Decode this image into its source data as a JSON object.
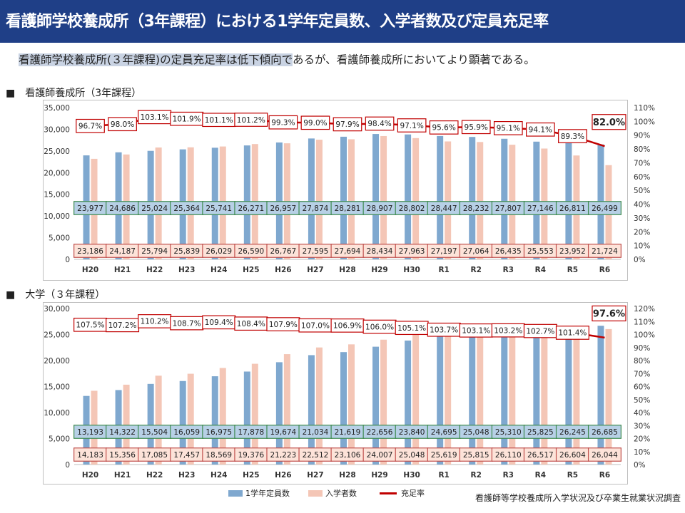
{
  "header": {
    "title": "看護師学校養成所（3年課程）における1学年定員数、入学者数及び定員充足率",
    "subtitle_highlight": "看護師学校養成所(３年課程)の定員充足率は低下傾向で",
    "subtitle_rest": "あるが、看護師養成所においてより顕著である。"
  },
  "colors": {
    "header_bg": "#1f3f87",
    "capacity": "#7fa8cf",
    "capacity_label_bg": "#b7d0e6",
    "capacity_label_border": "#3d8a4f",
    "enrollees": "#f4c6b6",
    "enrollees_label_bg": "#fde3d9",
    "enrollees_label_border": "#c0504d",
    "rate_line": "#c00000",
    "rate_label_border": "#c00000"
  },
  "legend": {
    "capacity": "1学年定員数",
    "enrollees": "入学者数",
    "rate": "充足率"
  },
  "source": "看護師等学校養成所入学状況及び卒業生就業状況調査",
  "chart_data": [
    {
      "type": "bar",
      "section_label": "■　看護師養成所（3年課程）",
      "categories": [
        "H20",
        "H21",
        "H22",
        "H23",
        "H24",
        "H25",
        "H26",
        "H27",
        "H28",
        "H29",
        "H30",
        "R1",
        "R2",
        "R3",
        "R4",
        "R5",
        "R6"
      ],
      "series": [
        {
          "name": "1学年定員数",
          "values": [
            23977,
            24686,
            25024,
            25364,
            25741,
            26271,
            26957,
            27874,
            28281,
            28907,
            28802,
            28447,
            28232,
            27807,
            27146,
            26811,
            26499
          ],
          "labels": [
            "23,977",
            "24,686",
            "25,024",
            "25,364",
            "25,741",
            "26,271",
            "26,957",
            "27,874",
            "28,281",
            "28,907",
            "28,802",
            "28,447",
            "28,232",
            "27,807",
            "27,146",
            "26,811",
            "26,499"
          ]
        },
        {
          "name": "入学者数",
          "values": [
            23186,
            24187,
            25794,
            25839,
            26029,
            26590,
            26767,
            27595,
            27694,
            28434,
            27963,
            27197,
            27064,
            26435,
            25553,
            23952,
            21724
          ],
          "labels": [
            "23,186",
            "24,187",
            "25,794",
            "25,839",
            "26,029",
            "26,590",
            "26,767",
            "27,595",
            "27,694",
            "28,434",
            "27,963",
            "27,197",
            "27,064",
            "26,435",
            "25,553",
            "23,952",
            "21,724"
          ]
        },
        {
          "name": "充足率",
          "type": "line",
          "axis": "right",
          "values": [
            96.7,
            98.0,
            103.1,
            101.9,
            101.1,
            101.2,
            99.3,
            99.0,
            97.9,
            98.4,
            97.1,
            95.6,
            95.9,
            95.1,
            94.1,
            89.3,
            82.0
          ],
          "labels": [
            "96.7%",
            "98.0%",
            "103.1%",
            "101.9%",
            "101.1%",
            "101.2%",
            "99.3%",
            "99.0%",
            "97.9%",
            "98.4%",
            "97.1%",
            "95.6%",
            "95.9%",
            "95.1%",
            "94.1%",
            "89.3%",
            "82.0%"
          ]
        }
      ],
      "ylim": [
        0,
        35000
      ],
      "yticks": [
        "0",
        "5,000",
        "10,000",
        "15,000",
        "20,000",
        "25,000",
        "30,000",
        "35,000"
      ],
      "y2lim": [
        0,
        110
      ],
      "y2ticks": [
        "0%",
        "10%",
        "20%",
        "30%",
        "40%",
        "50%",
        "60%",
        "70%",
        "80%",
        "90%",
        "100%",
        "110%"
      ]
    },
    {
      "type": "bar",
      "section_label": "■　大学（３年課程）",
      "categories": [
        "H20",
        "H21",
        "H22",
        "H23",
        "H24",
        "H25",
        "H26",
        "H27",
        "H28",
        "H29",
        "H30",
        "R1",
        "R2",
        "R3",
        "R4",
        "R5",
        "R6"
      ],
      "series": [
        {
          "name": "1学年定員数",
          "values": [
            13193,
            14322,
            15504,
            16059,
            16975,
            17878,
            19674,
            21034,
            21619,
            22656,
            23840,
            24695,
            25048,
            25310,
            25825,
            26245,
            26685
          ],
          "labels": [
            "13,193",
            "14,322",
            "15,504",
            "16,059",
            "16,975",
            "17,878",
            "19,674",
            "21,034",
            "21,619",
            "22,656",
            "23,840",
            "24,695",
            "25,048",
            "25,310",
            "25,825",
            "26,245",
            "26,685"
          ]
        },
        {
          "name": "入学者数",
          "values": [
            14183,
            15356,
            17085,
            17457,
            18569,
            19376,
            21223,
            22512,
            23106,
            24007,
            25048,
            25619,
            25815,
            26110,
            26517,
            26604,
            26044
          ],
          "labels": [
            "14,183",
            "15,356",
            "17,085",
            "17,457",
            "18,569",
            "19,376",
            "21,223",
            "22,512",
            "23,106",
            "24,007",
            "25,048",
            "25,619",
            "25,815",
            "26,110",
            "26,517",
            "26,604",
            "26,044"
          ]
        },
        {
          "name": "充足率",
          "type": "line",
          "axis": "right",
          "values": [
            107.5,
            107.2,
            110.2,
            108.7,
            109.4,
            108.4,
            107.9,
            107.0,
            106.9,
            106.0,
            105.1,
            103.7,
            103.1,
            103.2,
            102.7,
            101.4,
            97.6
          ],
          "labels": [
            "107.5%",
            "107.2%",
            "110.2%",
            "108.7%",
            "109.4%",
            "108.4%",
            "107.9%",
            "107.0%",
            "106.9%",
            "106.0%",
            "105.1%",
            "103.7%",
            "103.1%",
            "103.2%",
            "102.7%",
            "101.4%",
            "97.6%"
          ]
        }
      ],
      "ylim": [
        0,
        30000
      ],
      "yticks": [
        "0",
        "5,000",
        "10,000",
        "15,000",
        "20,000",
        "25,000",
        "30,000"
      ],
      "y2lim": [
        0,
        120
      ],
      "y2ticks": [
        "0%",
        "10%",
        "20%",
        "30%",
        "40%",
        "50%",
        "60%",
        "70%",
        "80%",
        "90%",
        "100%",
        "110%",
        "120%"
      ]
    }
  ]
}
